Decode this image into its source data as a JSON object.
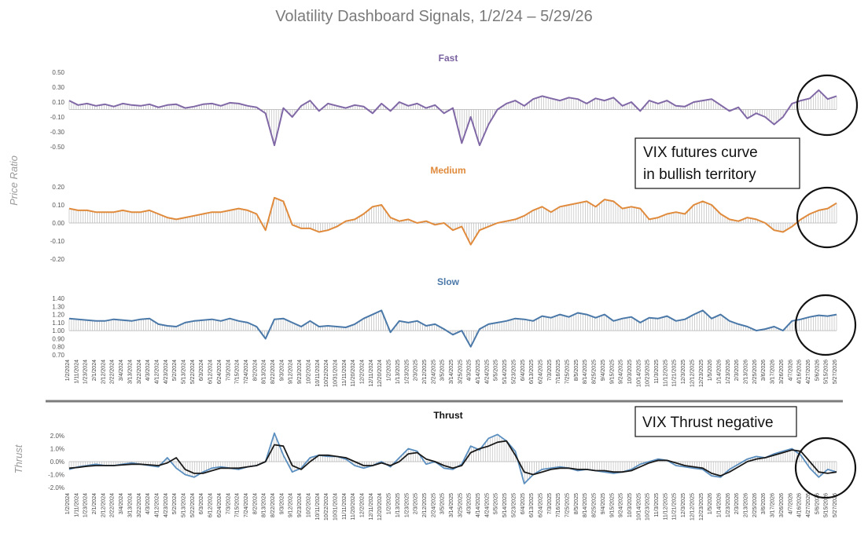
{
  "title": "Volatility Dashboard Signals, 1/2/24 – 5/29/26",
  "ylabel_top": "Price Ratio",
  "ylabel_bottom": "Thrust",
  "annotations": [
    "VIX  futures  curve\nin bullish territory",
    "VIX Thrust negative"
  ],
  "colors": {
    "fast": "#8068a6",
    "medium": "#e08a3c",
    "slow": "#4a78a8",
    "thrust_a": "#5b8fc0",
    "thrust_b": "#1a1a1a",
    "title_fast": "#7a619f",
    "title_medium": "#e08a3c",
    "title_slow": "#4a78a8"
  },
  "x_labels": [
    "1/2/2024",
    "1/11/2024",
    "1/23/2024",
    "2/1/2024",
    "2/12/2024",
    "2/22/2024",
    "3/4/2024",
    "3/13/2024",
    "3/22/2024",
    "4/3/2024",
    "4/12/2024",
    "4/23/2024",
    "5/2/2024",
    "5/13/2024",
    "5/22/2024",
    "6/3/2024",
    "6/12/2024",
    "6/24/2024",
    "7/3/2024",
    "7/15/2024",
    "7/24/2024",
    "8/2/2024",
    "8/13/2024",
    "8/22/2024",
    "9/3/2024",
    "9/12/2024",
    "9/23/2024",
    "10/2/2024",
    "10/11/2024",
    "10/22/2024",
    "10/31/2024",
    "11/11/2024",
    "11/20/2024",
    "12/2/2024",
    "12/11/2024",
    "12/20/2024",
    "1/2/2025",
    "1/13/2025",
    "1/23/2025",
    "2/3/2025",
    "2/12/2025",
    "2/24/2025",
    "3/5/2025",
    "3/14/2025",
    "3/25/2025",
    "4/3/2025",
    "4/14/2025",
    "4/24/2025",
    "5/5/2025",
    "5/14/2025",
    "5/23/2025",
    "6/4/2025",
    "6/13/2025",
    "6/24/2025",
    "7/3/2025",
    "7/16/2025",
    "7/25/2025",
    "8/5/2025",
    "8/14/2025",
    "8/25/2025",
    "9/4/2025",
    "9/15/2025",
    "9/24/2025",
    "10/3/2025",
    "10/14/2025",
    "10/23/2025",
    "11/3/2025",
    "11/12/2025",
    "11/21/2025",
    "12/3/2025",
    "12/12/2025",
    "12/23/2025",
    "1/5/2026",
    "1/14/2026",
    "1/23/2026",
    "2/3/2026",
    "2/13/2026",
    "2/25/2026",
    "3/6/2026",
    "3/17/2026",
    "3/26/2026",
    "4/7/2026",
    "4/16/2026",
    "4/27/2026",
    "5/6/2026",
    "5/15/2026",
    "5/27/2026"
  ],
  "chart_data": [
    {
      "type": "area",
      "title": "Fast",
      "ylim": [
        -0.5,
        0.5
      ],
      "yticks": [
        "0.50",
        "0.30",
        "0.10",
        "-0.10",
        "-0.30",
        "-0.50"
      ],
      "ytick_values": [
        0.5,
        0.3,
        0.1,
        -0.1,
        -0.3,
        -0.5
      ],
      "series": [
        {
          "values": [
            0.12,
            0.06,
            0.08,
            0.05,
            0.07,
            0.04,
            0.08,
            0.06,
            0.05,
            0.07,
            0.03,
            0.06,
            0.07,
            0.02,
            0.04,
            0.07,
            0.08,
            0.05,
            0.09,
            0.08,
            0.05,
            0.03,
            -0.05,
            -0.48,
            0.02,
            -0.1,
            0.05,
            0.12,
            -0.02,
            0.08,
            0.05,
            0.02,
            0.06,
            0.04,
            -0.05,
            0.08,
            -0.02,
            0.1,
            0.05,
            0.08,
            0.02,
            0.06,
            -0.05,
            0.02,
            -0.45,
            -0.1,
            -0.48,
            -0.2,
            0.0,
            0.08,
            0.12,
            0.05,
            0.14,
            0.18,
            0.15,
            0.12,
            0.16,
            0.14,
            0.08,
            0.15,
            0.12,
            0.16,
            0.05,
            0.1,
            -0.02,
            0.12,
            0.08,
            0.12,
            0.05,
            0.04,
            0.1,
            0.12,
            0.14,
            0.06,
            -0.02,
            0.03,
            -0.12,
            -0.05,
            -0.1,
            -0.2,
            -0.1,
            0.08,
            0.12,
            0.15,
            0.26,
            0.14,
            0.18
          ]
        }
      ]
    },
    {
      "type": "area",
      "title": "Medium",
      "ylim": [
        -0.2,
        0.2
      ],
      "yticks": [
        "0.20",
        "0.10",
        "0.00",
        "-0.10",
        "-0.20"
      ],
      "ytick_values": [
        0.2,
        0.1,
        0.0,
        -0.1,
        -0.2
      ],
      "series": [
        {
          "values": [
            0.08,
            0.07,
            0.07,
            0.06,
            0.06,
            0.06,
            0.07,
            0.06,
            0.06,
            0.07,
            0.05,
            0.03,
            0.02,
            0.03,
            0.04,
            0.05,
            0.06,
            0.06,
            0.07,
            0.08,
            0.07,
            0.05,
            -0.04,
            0.14,
            0.12,
            -0.01,
            -0.03,
            -0.03,
            -0.05,
            -0.04,
            -0.02,
            0.01,
            0.02,
            0.05,
            0.09,
            0.1,
            0.03,
            0.01,
            0.02,
            0.0,
            0.01,
            -0.01,
            0.0,
            -0.04,
            -0.02,
            -0.12,
            -0.04,
            -0.02,
            0.0,
            0.01,
            0.02,
            0.04,
            0.07,
            0.09,
            0.06,
            0.09,
            0.1,
            0.11,
            0.12,
            0.09,
            0.13,
            0.12,
            0.08,
            0.09,
            0.08,
            0.02,
            0.03,
            0.05,
            0.06,
            0.05,
            0.1,
            0.12,
            0.1,
            0.05,
            0.02,
            0.01,
            0.03,
            0.02,
            0.0,
            -0.04,
            -0.05,
            -0.02,
            0.02,
            0.05,
            0.07,
            0.08,
            0.11
          ]
        }
      ]
    },
    {
      "type": "area",
      "title": "Slow",
      "ylim": [
        0.7,
        1.4
      ],
      "yticks": [
        "1.40",
        "1.30",
        "1.20",
        "1.10",
        "1.00",
        "0.90",
        "0.80",
        "0.70"
      ],
      "ytick_values": [
        1.4,
        1.3,
        1.2,
        1.1,
        1.0,
        0.9,
        0.8,
        0.7
      ],
      "series": [
        {
          "values": [
            1.15,
            1.14,
            1.13,
            1.12,
            1.12,
            1.14,
            1.13,
            1.12,
            1.14,
            1.15,
            1.08,
            1.06,
            1.05,
            1.1,
            1.12,
            1.13,
            1.14,
            1.12,
            1.15,
            1.12,
            1.1,
            1.05,
            0.9,
            1.14,
            1.15,
            1.1,
            1.05,
            1.12,
            1.05,
            1.06,
            1.05,
            1.04,
            1.08,
            1.15,
            1.2,
            1.25,
            0.98,
            1.12,
            1.1,
            1.12,
            1.06,
            1.08,
            1.02,
            0.95,
            1.0,
            0.8,
            1.02,
            1.08,
            1.1,
            1.12,
            1.15,
            1.14,
            1.12,
            1.18,
            1.16,
            1.2,
            1.17,
            1.22,
            1.2,
            1.16,
            1.2,
            1.12,
            1.15,
            1.17,
            1.1,
            1.16,
            1.15,
            1.18,
            1.12,
            1.14,
            1.2,
            1.25,
            1.15,
            1.2,
            1.12,
            1.08,
            1.05,
            1.0,
            1.02,
            1.05,
            1.0,
            1.12,
            1.14,
            1.17,
            1.19,
            1.18,
            1.2
          ]
        }
      ]
    },
    {
      "type": "line",
      "title": "Thrust",
      "ylim": [
        -2.0,
        2.0
      ],
      "yticks": [
        "2.0%",
        "1.0%",
        "0.0%",
        "-1.0%",
        "-2.0%"
      ],
      "ytick_values": [
        2.0,
        1.0,
        0.0,
        -1.0,
        -2.0
      ],
      "series": [
        {
          "values": [
            -0.6,
            -0.4,
            -0.3,
            -0.2,
            -0.3,
            -0.3,
            -0.2,
            -0.1,
            -0.2,
            -0.3,
            -0.4,
            0.3,
            -0.5,
            -1.0,
            -1.2,
            -0.8,
            -0.5,
            -0.4,
            -0.5,
            -0.6,
            -0.4,
            -0.3,
            0.0,
            2.2,
            0.5,
            -0.8,
            -0.5,
            0.3,
            0.5,
            0.4,
            0.4,
            0.2,
            -0.3,
            -0.5,
            -0.3,
            0.0,
            -0.4,
            0.3,
            1.0,
            0.8,
            -0.2,
            0.0,
            -0.5,
            -0.6,
            -0.2,
            1.2,
            0.9,
            1.8,
            2.1,
            1.6,
            0.8,
            -1.7,
            -1.0,
            -0.6,
            -0.5,
            -0.4,
            -0.5,
            -0.7,
            -0.6,
            -0.7,
            -0.8,
            -0.9,
            -0.8,
            -0.6,
            -0.2,
            0.0,
            0.2,
            0.1,
            -0.3,
            -0.4,
            -0.5,
            -0.6,
            -1.1,
            -1.2,
            -0.6,
            -0.2,
            0.2,
            0.4,
            0.3,
            0.6,
            0.8,
            1.0,
            0.5,
            -0.5,
            -1.2,
            -0.6,
            -0.8
          ]
        },
        {
          "values": [
            -0.5,
            -0.45,
            -0.35,
            -0.3,
            -0.3,
            -0.3,
            -0.25,
            -0.2,
            -0.2,
            -0.25,
            -0.3,
            -0.1,
            0.3,
            -0.6,
            -0.9,
            -0.9,
            -0.7,
            -0.5,
            -0.5,
            -0.5,
            -0.4,
            -0.3,
            0.0,
            1.3,
            1.2,
            -0.3,
            -0.6,
            0.0,
            0.5,
            0.5,
            0.4,
            0.3,
            0.0,
            -0.3,
            -0.3,
            -0.1,
            -0.3,
            0.0,
            0.6,
            0.7,
            0.2,
            0.0,
            -0.3,
            -0.5,
            -0.3,
            0.7,
            1.0,
            1.2,
            1.5,
            1.6,
            0.5,
            -0.8,
            -1.0,
            -0.8,
            -0.6,
            -0.5,
            -0.5,
            -0.6,
            -0.6,
            -0.7,
            -0.7,
            -0.8,
            -0.8,
            -0.7,
            -0.4,
            -0.1,
            0.1,
            0.1,
            -0.1,
            -0.3,
            -0.4,
            -0.5,
            -0.9,
            -1.1,
            -0.8,
            -0.4,
            0.0,
            0.2,
            0.3,
            0.5,
            0.7,
            0.9,
            0.8,
            0.0,
            -0.8,
            -0.9,
            -0.8
          ]
        }
      ]
    }
  ]
}
